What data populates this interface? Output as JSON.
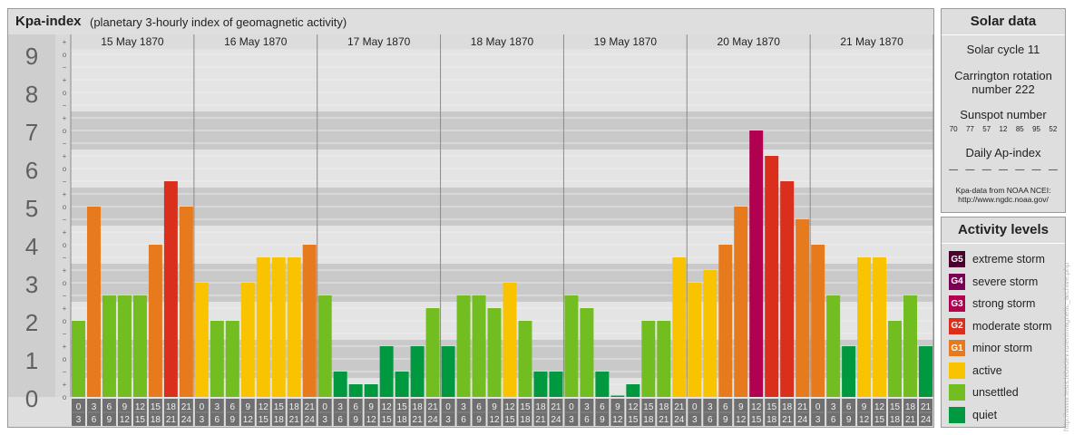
{
  "header": {
    "title": "Kpa-index",
    "subtitle": "(planetary 3-hourly index of geomagnetic activity)"
  },
  "colors": {
    "quiet": "#009940",
    "unsettled": "#72bd20",
    "active": "#f9c300",
    "G1": "#e87a1e",
    "G2": "#d92f1c",
    "G3": "#b0004f",
    "G4": "#7d0057",
    "G5": "#4a002a"
  },
  "chart_data": {
    "type": "bar",
    "ylim": [
      0,
      9
    ],
    "y_ticks": [
      "0",
      "1",
      "2",
      "3",
      "4",
      "5",
      "6",
      "7",
      "8",
      "9"
    ],
    "sub_tick_labels": [
      "+",
      "o",
      "−"
    ],
    "days": [
      "15 May 1870",
      "16 May 1870",
      "17 May 1870",
      "18 May 1870",
      "19 May 1870",
      "20 May 1870",
      "21 May 1870"
    ],
    "interval_labels": [
      [
        "0",
        "3"
      ],
      [
        "3",
        "6"
      ],
      [
        "6",
        "9"
      ],
      [
        "9",
        "12"
      ],
      [
        "12",
        "15"
      ],
      [
        "15",
        "18"
      ],
      [
        "18",
        "21"
      ],
      [
        "21",
        "24"
      ]
    ],
    "values": [
      [
        2.0,
        5.0,
        2.667,
        2.667,
        2.667,
        4.0,
        5.667,
        5.0
      ],
      [
        3.0,
        2.0,
        2.0,
        3.0,
        3.667,
        3.667,
        3.667,
        4.0
      ],
      [
        2.667,
        0.667,
        0.333,
        0.333,
        1.333,
        0.667,
        1.333,
        2.333
      ],
      [
        1.333,
        2.667,
        2.667,
        2.333,
        3.0,
        2.0,
        0.667,
        0.667
      ],
      [
        2.667,
        2.333,
        0.667,
        0.0,
        0.333,
        2.0,
        2.0,
        3.667
      ],
      [
        3.0,
        3.333,
        4.0,
        5.0,
        7.0,
        6.333,
        5.667,
        4.667
      ],
      [
        4.0,
        2.667,
        1.333,
        3.667,
        3.667,
        2.0,
        2.667,
        1.333
      ]
    ]
  },
  "solar_data": {
    "title": "Solar data",
    "cycle": "Solar cycle 11",
    "rotation": "Carrington rotation number 222",
    "sunspot_title": "Sunspot number",
    "sunspot_values": [
      "70",
      "77",
      "57",
      "12",
      "85",
      "95",
      "52"
    ],
    "ap_title": "Daily Ap-index",
    "ap_values": [
      "—",
      "—",
      "—",
      "—",
      "—",
      "—",
      "—"
    ],
    "source": "Kpa-data from NOAA NCEI: http://www.ngdc.noaa.gov/"
  },
  "activity_levels": {
    "title": "Activity levels",
    "items": [
      {
        "badge": "G5",
        "label": "extreme storm",
        "color": "#4a002a"
      },
      {
        "badge": "G4",
        "label": "severe storm",
        "color": "#7d0057"
      },
      {
        "badge": "G3",
        "label": "strong storm",
        "color": "#b0004f"
      },
      {
        "badge": "G2",
        "label": "moderate storm",
        "color": "#d92f1c"
      },
      {
        "badge": "G1",
        "label": "minor storm",
        "color": "#e87a1e"
      },
      {
        "badge": "",
        "label": "active",
        "color": "#f9c300"
      },
      {
        "badge": "",
        "label": "unsettled",
        "color": "#72bd20"
      },
      {
        "badge": "",
        "label": "quiet",
        "color": "#009940"
      }
    ]
  },
  "credit": "http://www.tesis.lebedev.ru/en/magnetic_archive.php"
}
